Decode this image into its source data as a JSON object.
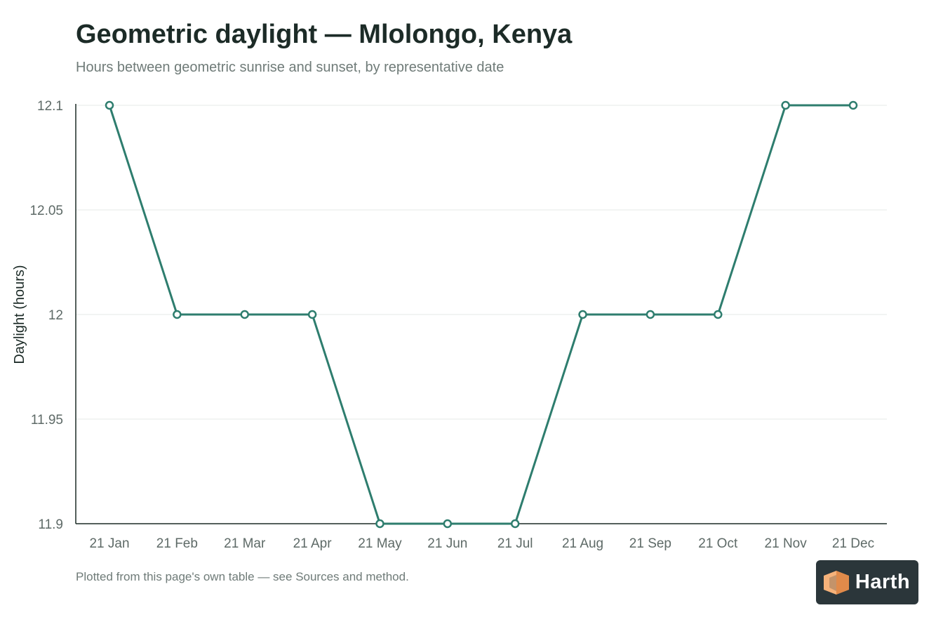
{
  "header": {
    "title": "Geometric daylight — Mlolongo, Kenya",
    "subtitle": "Hours between geometric sunrise and sunset, by representative date"
  },
  "footer": {
    "note": "Plotted from this page's own table — see Sources and method."
  },
  "logo": {
    "text": "Harth",
    "icon": "cube-icon",
    "colors": {
      "background": "#2b363a",
      "face_light": "#f6b27a",
      "face_dark": "#e08a4a"
    }
  },
  "colors": {
    "series": "#2e7d6e",
    "grid": "#e6e8e7",
    "axis": "#1c2b27"
  },
  "chart_data": {
    "type": "line",
    "title": "Geometric daylight — Mlolongo, Kenya",
    "subtitle": "Hours between geometric sunrise and sunset, by representative date",
    "xlabel": "",
    "ylabel": "Daylight (hours)",
    "categories": [
      "21 Jan",
      "21 Feb",
      "21 Mar",
      "21 Apr",
      "21 May",
      "21 Jun",
      "21 Jul",
      "21 Aug",
      "21 Sep",
      "21 Oct",
      "21 Nov",
      "21 Dec"
    ],
    "series": [
      {
        "values": [
          12.1,
          12.0,
          12.0,
          12.0,
          11.9,
          11.9,
          11.9,
          12.0,
          12.0,
          12.0,
          12.1,
          12.1
        ]
      }
    ],
    "ylim": [
      11.9,
      12.1
    ],
    "yticks": [
      11.9,
      11.95,
      12,
      12.05,
      12.1
    ],
    "ytick_labels": [
      "11.9",
      "11.95",
      "12",
      "12.05",
      "12.1"
    ],
    "grid": true,
    "legend": "none",
    "markers": "hollow-circle"
  }
}
